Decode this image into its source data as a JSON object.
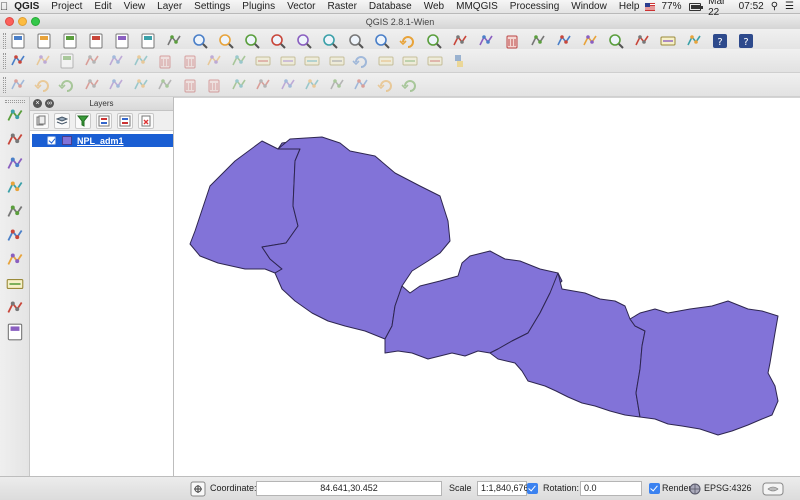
{
  "menubar": {
    "app": "QGIS",
    "items": [
      "Project",
      "Edit",
      "View",
      "Layer",
      "Settings",
      "Plugins",
      "Vector",
      "Raster",
      "Database",
      "Web",
      "MMQGIS",
      "Processing",
      "Window",
      "Help"
    ],
    "battery": "77%",
    "battery_level": 0.77,
    "date": "Mar 22",
    "time": "07:52"
  },
  "window": {
    "title": "QGIS 2.8.1-Wien"
  },
  "layers_panel": {
    "title": "Layers",
    "layers": [
      {
        "name": "NPL_adm1",
        "visible": true,
        "fill": "#8273d8"
      }
    ]
  },
  "statusbar": {
    "coordinate_label": "Coordinate:",
    "coordinate_value": "84.641,30.452",
    "scale_label": "Scale",
    "scale_value": "1:1,840,676",
    "rotation_label": "Rotation:",
    "rotation_value": "0.0",
    "render_label": "Render",
    "crs": "EPSG:4326"
  },
  "toolbar_icons": {
    "row1": [
      "new-project-icon",
      "open-project-icon",
      "save-project-icon",
      "save-as-icon",
      "new-print-composer-icon",
      "composer-manager-icon",
      "pan-icon",
      "pan-to-selection-icon",
      "zoom-in-icon",
      "zoom-out-icon",
      "zoom-full-icon",
      "zoom-to-selection-icon",
      "zoom-to-layer-icon",
      "zoom-last-icon",
      "zoom-next-icon",
      "refresh-icon",
      "identify-icon",
      "run-action-icon",
      "select-features-icon",
      "deselect-icon",
      "field-calculator-icon",
      "attribute-table-icon",
      "statistics-icon",
      "measure-icon",
      "annotation-icon",
      "text-annotation-icon",
      "map-tips-icon",
      "help-icon",
      "whats-this-icon"
    ],
    "row2": [
      "current-edits-icon",
      "toggle-editing-icon",
      "save-edits-icon",
      "add-feature-icon",
      "move-feature-icon",
      "node-tool-icon",
      "delete-selected-icon",
      "cut-features-icon",
      "copy-features-icon",
      "paste-features-icon",
      "label-tool-icon",
      "pin-labels-icon",
      "highlight-labels-icon",
      "move-label-icon",
      "rotate-label-icon",
      "change-label-icon",
      "show-hide-labels-icon",
      "csw-icon",
      "python-console-icon"
    ],
    "row3": [
      "digitize-icon",
      "undo-icon",
      "redo-icon",
      "simplify-feature-icon",
      "add-ring-icon",
      "add-part-icon",
      "fill-ring-icon",
      "delete-ring-icon",
      "delete-part-icon",
      "reshape-icon",
      "offset-curve-icon",
      "split-features-icon",
      "split-parts-icon",
      "merge-features-icon",
      "merge-attributes-icon",
      "rotate-point-symbols-icon",
      "rotate-feature-icon"
    ],
    "left": [
      "add-vector-layer-icon",
      "add-raster-layer-icon",
      "add-spatialite-layer-icon",
      "add-postgis-layer-icon",
      "add-wms-layer-icon",
      "add-wcs-layer-icon",
      "add-wfs-layer-icon",
      "add-delimited-text-icon",
      "add-virtual-layer-icon",
      "new-vector-layer-icon"
    ]
  }
}
